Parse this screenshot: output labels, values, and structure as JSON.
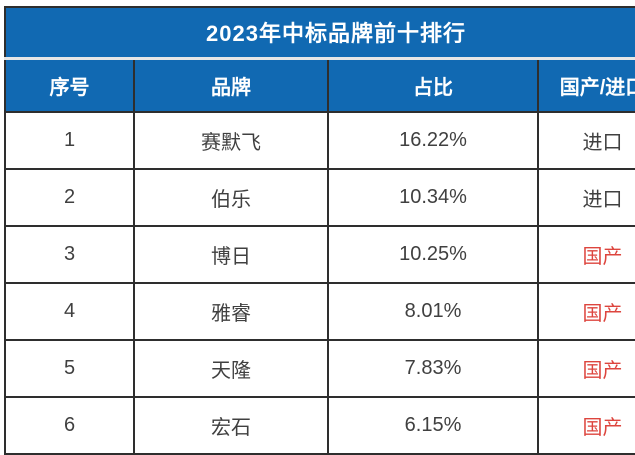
{
  "colors": {
    "header_blue": "#1169b2",
    "border_dark": "#2e2e2e",
    "body_text": "#404040",
    "domestic_red": "#dd453e",
    "title_header_text": "#ffffff",
    "page_background": "#ffffff"
  },
  "chart_data": {
    "type": "table",
    "title": "2023年中标品牌前十排行",
    "columns": [
      "序号",
      "品牌",
      "占比",
      "国产/进口"
    ],
    "rows": [
      {
        "rank": "1",
        "brand": "赛默飞",
        "share": "16.22%",
        "origin": "进口"
      },
      {
        "rank": "2",
        "brand": "伯乐",
        "share": "10.34%",
        "origin": "进口"
      },
      {
        "rank": "3",
        "brand": "博日",
        "share": "10.25%",
        "origin": "国产"
      },
      {
        "rank": "4",
        "brand": "雅睿",
        "share": "8.01%",
        "origin": "国产"
      },
      {
        "rank": "5",
        "brand": "天隆",
        "share": "7.83%",
        "origin": "国产"
      },
      {
        "rank": "6",
        "brand": "宏石",
        "share": "6.15%",
        "origin": "国产"
      }
    ]
  }
}
